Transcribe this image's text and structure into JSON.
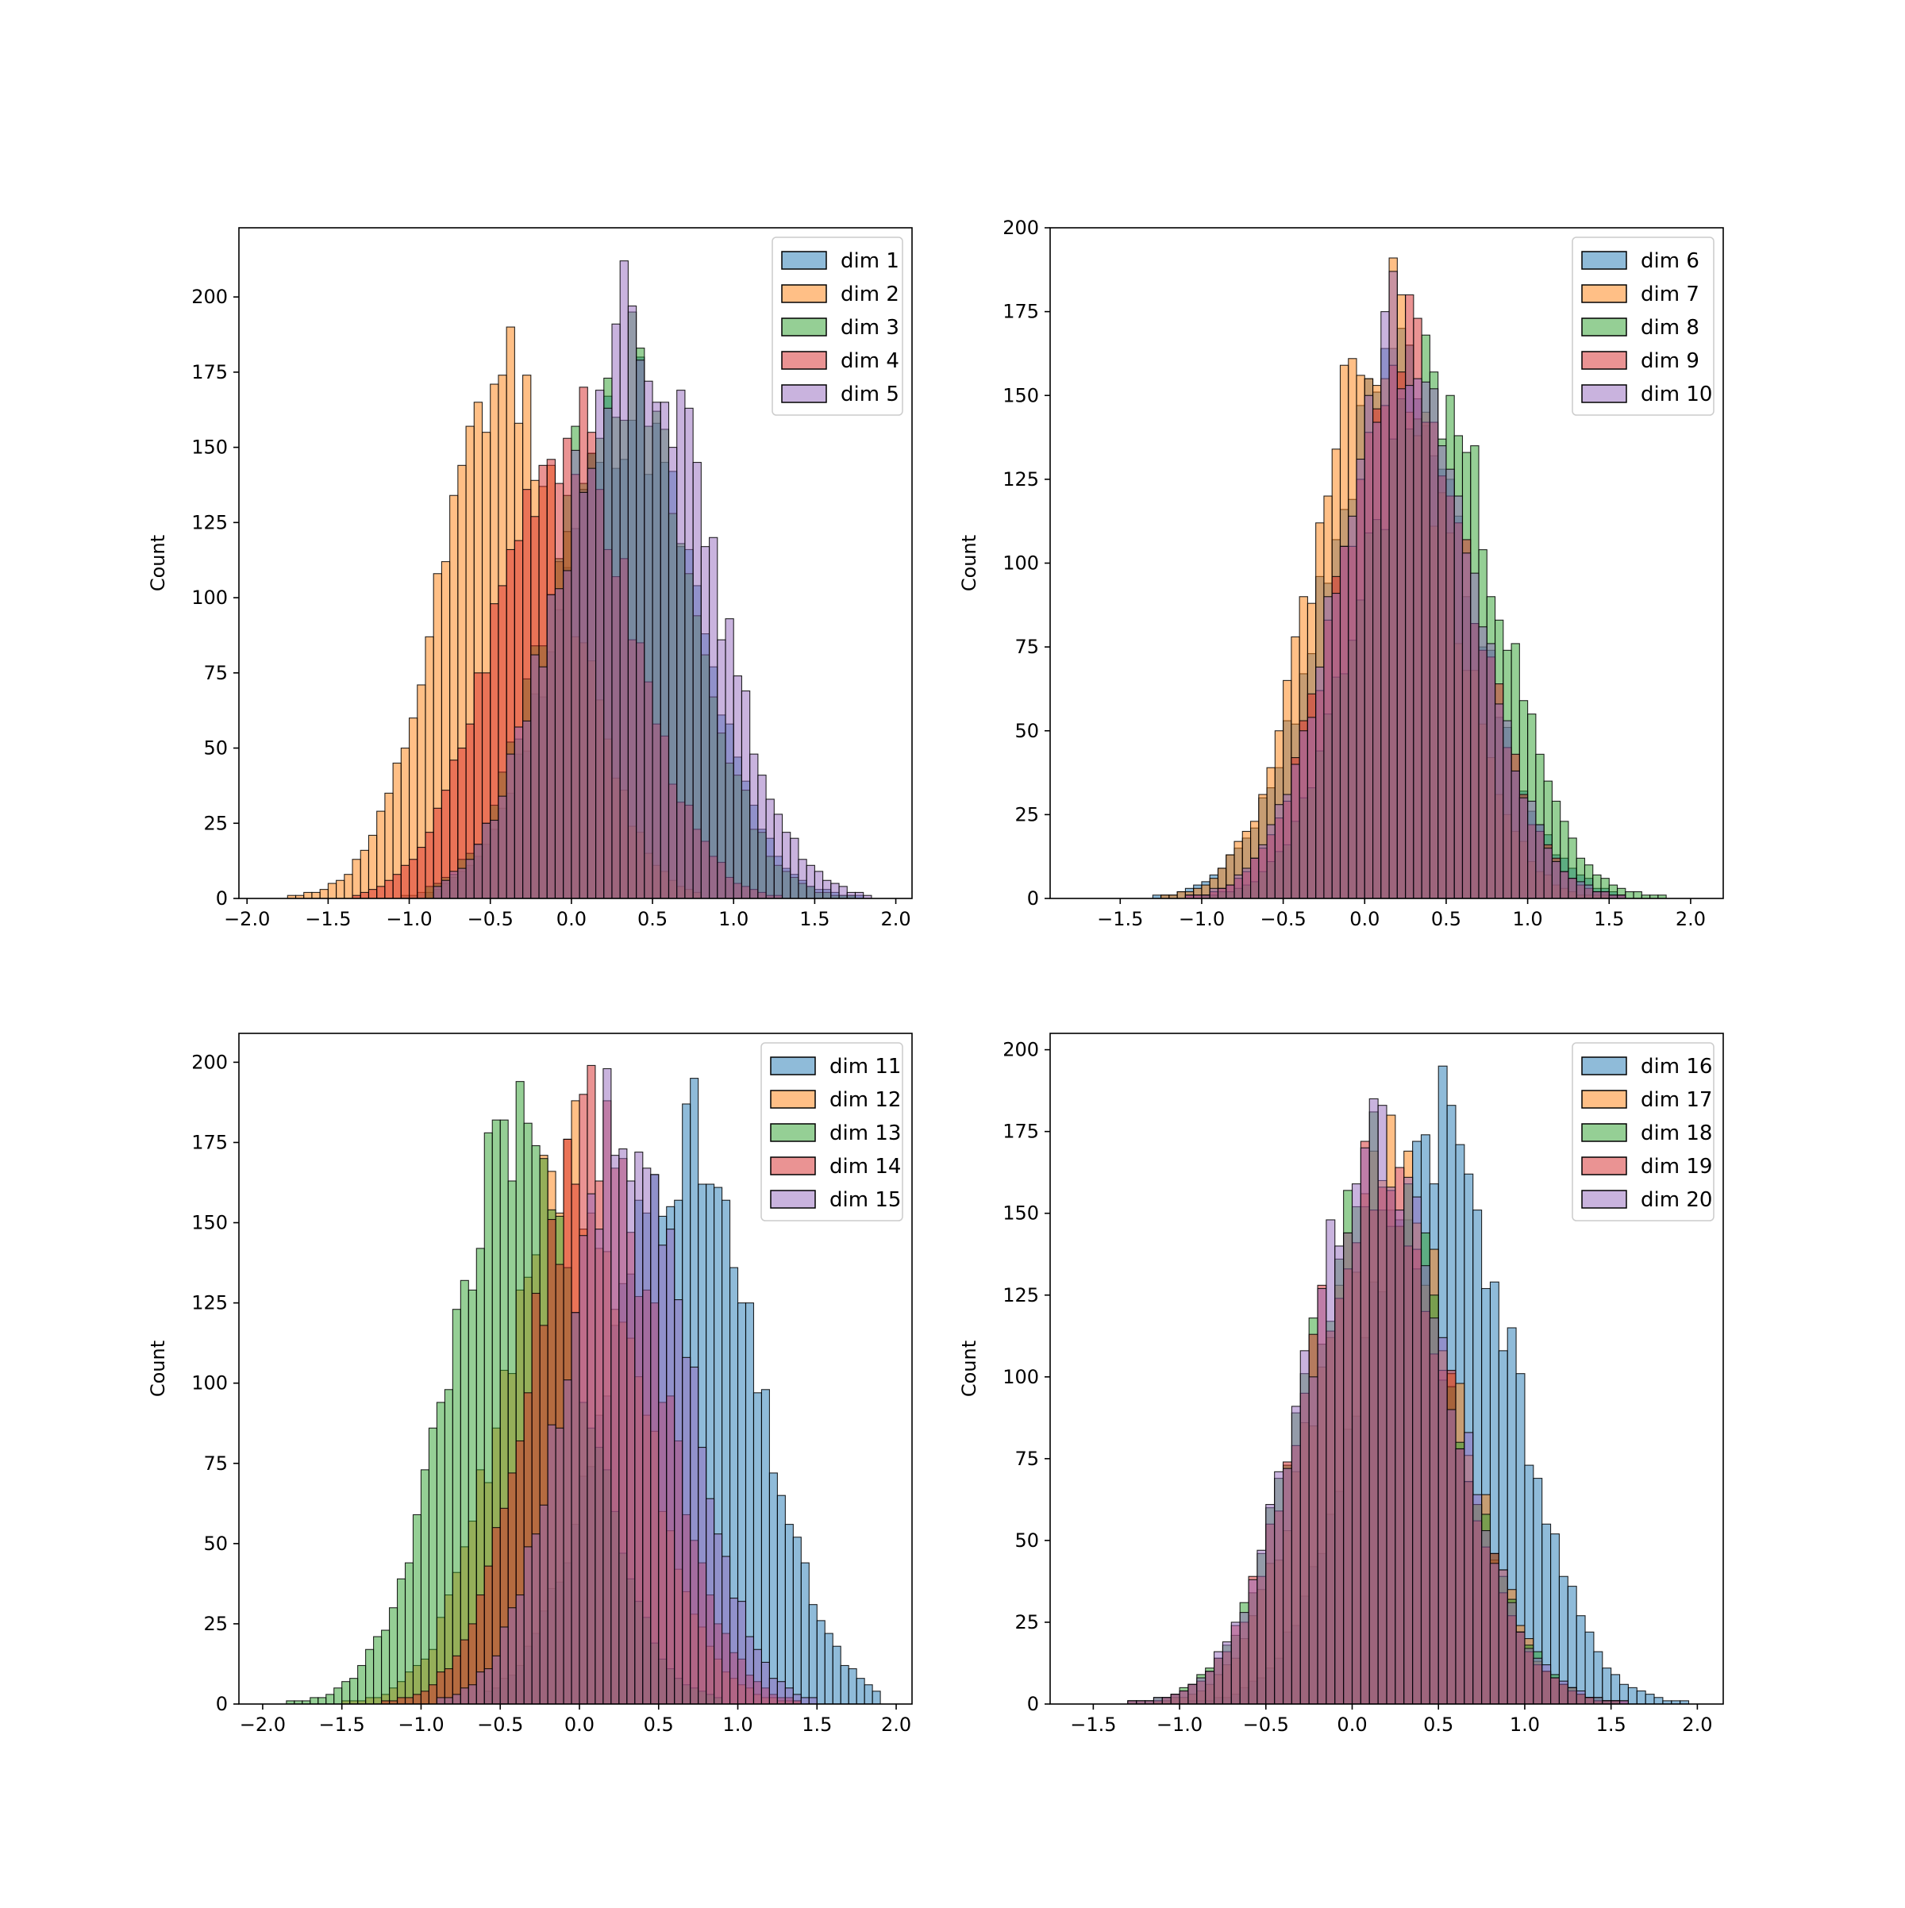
{
  "figure": {
    "colors": [
      "#1f77b4",
      "#ff7f0e",
      "#2ca02c",
      "#d62728",
      "#9467bd"
    ],
    "bar_opacity": 0.5,
    "bar_edge_color": "#000000"
  },
  "chart_data": [
    {
      "type": "histogram",
      "position": "top-left",
      "xlabel": "",
      "ylabel": "Count",
      "xlim": [
        -2.05,
        2.1
      ],
      "ylim": [
        0,
        223
      ],
      "xticks": [
        -2.0,
        -1.5,
        -1.0,
        -0.5,
        0.0,
        0.5,
        1.0,
        1.5,
        2.0
      ],
      "xtick_labels": [
        "−2.0",
        "−1.5",
        "−1.0",
        "−0.5",
        "0.0",
        "0.5",
        "1.0",
        "1.5",
        "2.0"
      ],
      "yticks": [
        0,
        25,
        50,
        75,
        100,
        125,
        150,
        175,
        200
      ],
      "ytick_labels": [
        "0",
        "25",
        "50",
        "75",
        "100",
        "125",
        "150",
        "175",
        "200"
      ],
      "grid": false,
      "legend": {
        "position": "top-right"
      },
      "series": [
        {
          "name": "dim 1",
          "mean": 0.35,
          "std": 0.42,
          "peak": 180,
          "range": [
            -1.25,
            1.9
          ],
          "seed": 11
        },
        {
          "name": "dim 2",
          "mean": -0.4,
          "std": 0.4,
          "peak": 190,
          "range": [
            -1.85,
            0.8
          ],
          "seed": 12
        },
        {
          "name": "dim 3",
          "mean": 0.3,
          "std": 0.42,
          "peak": 195,
          "range": [
            -0.9,
            1.75
          ],
          "seed": 13
        },
        {
          "name": "dim 4",
          "mean": -0.05,
          "std": 0.42,
          "peak": 170,
          "range": [
            -1.35,
            1.3
          ],
          "seed": 14
        },
        {
          "name": "dim 5",
          "mean": 0.4,
          "std": 0.45,
          "peak": 212,
          "range": [
            -0.85,
            1.85
          ],
          "seed": 15
        }
      ]
    },
    {
      "type": "histogram",
      "position": "top-right",
      "xlabel": "",
      "ylabel": "Count",
      "xlim": [
        -1.93,
        2.2
      ],
      "ylim": [
        0,
        200
      ],
      "xticks": [
        -1.5,
        -1.0,
        -0.5,
        0.0,
        0.5,
        1.0,
        1.5,
        2.0
      ],
      "xtick_labels": [
        "−1.5",
        "−1.0",
        "−0.5",
        "0.0",
        "0.5",
        "1.0",
        "1.5",
        "2.0"
      ],
      "yticks": [
        0,
        25,
        50,
        75,
        100,
        125,
        150,
        175,
        200
      ],
      "ytick_labels": [
        "0",
        "25",
        "50",
        "75",
        "100",
        "125",
        "150",
        "175",
        "200"
      ],
      "grid": false,
      "legend": {
        "position": "top-right"
      },
      "series": [
        {
          "name": "dim 6",
          "mean": 0.2,
          "std": 0.45,
          "peak": 170,
          "range": [
            -1.8,
            1.6
          ],
          "seed": 21
        },
        {
          "name": "dim 7",
          "mean": 0.1,
          "std": 0.4,
          "peak": 191,
          "range": [
            -1.5,
            1.5
          ],
          "seed": 22
        },
        {
          "name": "dim 8",
          "mean": 0.4,
          "std": 0.42,
          "peak": 168,
          "range": [
            -1.2,
            2.0
          ],
          "seed": 23
        },
        {
          "name": "dim 9",
          "mean": 0.25,
          "std": 0.4,
          "peak": 180,
          "range": [
            -1.5,
            1.6
          ],
          "seed": 24
        },
        {
          "name": "dim 10",
          "mean": 0.25,
          "std": 0.4,
          "peak": 187,
          "range": [
            -1.5,
            1.6
          ],
          "seed": 25
        }
      ]
    },
    {
      "type": "histogram",
      "position": "bottom-left",
      "xlabel": "",
      "ylabel": "Count",
      "xlim": [
        -2.15,
        2.1
      ],
      "ylim": [
        0,
        209
      ],
      "xticks": [
        -2.0,
        -1.5,
        -1.0,
        -0.5,
        0.0,
        0.5,
        1.0,
        1.5,
        2.0
      ],
      "xtick_labels": [
        "−2.0",
        "−1.5",
        "−1.0",
        "−0.5",
        "0.0",
        "0.5",
        "1.0",
        "1.5",
        "2.0"
      ],
      "yticks": [
        0,
        25,
        50,
        75,
        100,
        125,
        150,
        175,
        200
      ],
      "ytick_labels": [
        "0",
        "25",
        "50",
        "75",
        "100",
        "125",
        "150",
        "175",
        "200"
      ],
      "grid": false,
      "legend": {
        "position": "top-right"
      },
      "series": [
        {
          "name": "dim 11",
          "mean": 0.65,
          "std": 0.45,
          "peak": 195,
          "range": [
            -0.6,
            1.9
          ],
          "seed": 31
        },
        {
          "name": "dim 12",
          "mean": -0.05,
          "std": 0.42,
          "peak": 188,
          "range": [
            -1.5,
            1.5
          ],
          "seed": 32
        },
        {
          "name": "dim 13",
          "mean": -0.4,
          "std": 0.42,
          "peak": 194,
          "range": [
            -1.95,
            0.9
          ],
          "seed": 33
        },
        {
          "name": "dim 14",
          "mean": 0.1,
          "std": 0.4,
          "peak": 199,
          "range": [
            -1.3,
            1.4
          ],
          "seed": 34
        },
        {
          "name": "dim 15",
          "mean": 0.3,
          "std": 0.38,
          "peak": 198,
          "range": [
            -0.9,
            1.5
          ],
          "seed": 35
        }
      ]
    },
    {
      "type": "histogram",
      "position": "bottom-right",
      "xlabel": "",
      "ylabel": "Count",
      "xlim": [
        -1.75,
        2.15
      ],
      "ylim": [
        0,
        205
      ],
      "xticks": [
        -1.5,
        -1.0,
        -0.5,
        0.0,
        0.5,
        1.0,
        1.5,
        2.0
      ],
      "xtick_labels": [
        "−1.5",
        "−1.0",
        "−0.5",
        "0.0",
        "0.5",
        "1.0",
        "1.5",
        "2.0"
      ],
      "yticks": [
        0,
        25,
        50,
        75,
        100,
        125,
        150,
        175,
        200
      ],
      "ytick_labels": [
        "0",
        "25",
        "50",
        "75",
        "100",
        "125",
        "150",
        "175",
        "200"
      ],
      "grid": false,
      "legend": {
        "position": "top-right"
      },
      "series": [
        {
          "name": "dim 16",
          "mean": 0.5,
          "std": 0.42,
          "peak": 195,
          "range": [
            -1.0,
            2.0
          ],
          "seed": 41
        },
        {
          "name": "dim 17",
          "mean": 0.2,
          "std": 0.4,
          "peak": 180,
          "range": [
            -1.2,
            1.6
          ],
          "seed": 42
        },
        {
          "name": "dim 18",
          "mean": 0.15,
          "std": 0.42,
          "peak": 181,
          "range": [
            -1.3,
            1.7
          ],
          "seed": 43
        },
        {
          "name": "dim 19",
          "mean": 0.15,
          "std": 0.42,
          "peak": 172,
          "range": [
            -1.5,
            1.6
          ],
          "seed": 44
        },
        {
          "name": "dim 20",
          "mean": 0.15,
          "std": 0.42,
          "peak": 185,
          "range": [
            -1.5,
            1.6
          ],
          "seed": 45
        }
      ]
    }
  ]
}
